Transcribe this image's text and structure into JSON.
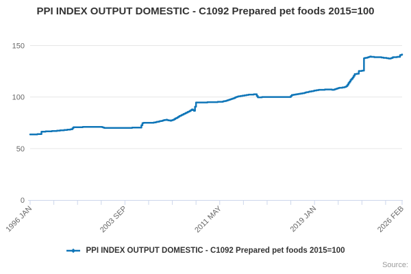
{
  "chart_data": {
    "type": "line",
    "title": "PPI INDEX OUTPUT DOMESTIC - C1092 Prepared pet foods 2015=100",
    "credits": "Source:",
    "legend_position": "bottom",
    "x_axis": {
      "kind": "monthly-time",
      "start": "1996-01",
      "end": "2026-02",
      "minor_tick_every_months": 23,
      "labeled_ticks": [
        {
          "month": "1996-01",
          "label": "1996 JAN"
        },
        {
          "month": "2003-09",
          "label": "2003 SEP"
        },
        {
          "month": "2011-05",
          "label": "2011 MAY"
        },
        {
          "month": "2019-01",
          "label": "2019 JAN"
        },
        {
          "month": "2026-02",
          "label": "2026 FEB"
        }
      ]
    },
    "y_axis": {
      "min": 0,
      "max": 150,
      "ticks": [
        0,
        50,
        100,
        150
      ],
      "gridlines": true
    },
    "series": [
      {
        "name": "PPI INDEX OUTPUT DOMESTIC - C1092 Prepared pet foods 2015=100",
        "color": "#1076b8",
        "points": [
          [
            "1996-01",
            63.5
          ],
          [
            "1996-07",
            63.8
          ],
          [
            "1996-11",
            64.0
          ],
          [
            "1996-12",
            66.3
          ],
          [
            "1998-01",
            67.0
          ],
          [
            "1999-05",
            68.6
          ],
          [
            "1999-07",
            70.8
          ],
          [
            "2001-10",
            70.9
          ],
          [
            "2002-02",
            69.9
          ],
          [
            "2003-06",
            70.0
          ],
          [
            "2004-12",
            70.3
          ],
          [
            "2005-02",
            74.8
          ],
          [
            "2006-01",
            75.2
          ],
          [
            "2006-08",
            76.8
          ],
          [
            "2007-01",
            78.0
          ],
          [
            "2007-05",
            76.9
          ],
          [
            "2007-08",
            78.0
          ],
          [
            "2008-01",
            81.0
          ],
          [
            "2008-06",
            83.5
          ],
          [
            "2008-10",
            85.5
          ],
          [
            "2009-02",
            88.0
          ],
          [
            "2009-04",
            86.5
          ],
          [
            "2009-06",
            94.5
          ],
          [
            "2011-07",
            95.3
          ],
          [
            "2012-03",
            97.5
          ],
          [
            "2012-10",
            100.4
          ],
          [
            "2013-03",
            101.2
          ],
          [
            "2013-09",
            102.3
          ],
          [
            "2014-04",
            102.6
          ],
          [
            "2014-06",
            99.7
          ],
          [
            "2015-01",
            100.0
          ],
          [
            "2017-01",
            100.1
          ],
          [
            "2017-03",
            102.0
          ],
          [
            "2018-01",
            103.6
          ],
          [
            "2018-09",
            105.4
          ],
          [
            "2019-04",
            106.8
          ],
          [
            "2020-02",
            107.4
          ],
          [
            "2020-07",
            107.1
          ],
          [
            "2020-12",
            108.8
          ],
          [
            "2021-05",
            109.3
          ],
          [
            "2021-08",
            110.5
          ],
          [
            "2021-10",
            113.5
          ],
          [
            "2021-12",
            116.5
          ],
          [
            "2022-02",
            119.0
          ],
          [
            "2022-04",
            122.3
          ],
          [
            "2022-07",
            122.8
          ],
          [
            "2022-08",
            125.2
          ],
          [
            "2022-11",
            125.5
          ],
          [
            "2022-12",
            125.6
          ],
          [
            "2023-01",
            137.6
          ],
          [
            "2023-07",
            139.2
          ],
          [
            "2024-01",
            138.6
          ],
          [
            "2024-04",
            138.8
          ],
          [
            "2025-02",
            137.2
          ],
          [
            "2025-05",
            138.6
          ],
          [
            "2025-11",
            139.0
          ],
          [
            "2025-12",
            140.6
          ],
          [
            "2026-02",
            141.2
          ]
        ]
      }
    ],
    "colors": {
      "line": "#1076b8",
      "grid": "#e6e6e6",
      "axis": "#ccd6eb",
      "labels": "#666666",
      "title": "#333333",
      "credits": "#999999"
    }
  }
}
